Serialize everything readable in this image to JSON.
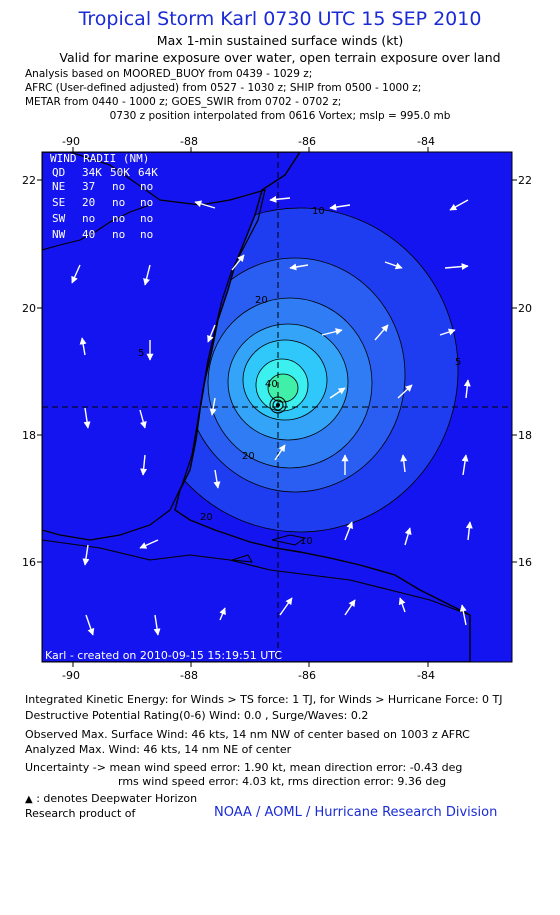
{
  "header": {
    "title": "Tropical Storm Karl 0730 UTC 15 SEP 2010",
    "subtitle1": "Max 1-min sustained surface winds (kt)",
    "subtitle2": "Valid for marine exposure over water, open terrain exposure over land",
    "analysis_lines": [
      "Analysis based on MOORED_BUOY from 0439 - 1029 z;",
      "AFRC (User-defined adjusted) from 0527 - 1030 z; SHIP from 0500 - 1000 z;",
      "METAR from 0440 - 1000 z; GOES_SWIR from 0702 - 0702 z;"
    ],
    "position_line": "0730 z position interpolated from 0616 Vortex; mslp = 995.0 mb"
  },
  "map": {
    "lon_ticks": [
      "-90",
      "-88",
      "-86",
      "-84"
    ],
    "lat_ticks": [
      "22",
      "20",
      "18",
      "16"
    ],
    "contour_labels": [
      "10",
      "20",
      "5",
      "20",
      "40",
      "10",
      "20",
      "5"
    ],
    "credit": "Karl - created on 2010-09-15 15:19:51 UTC",
    "colors": {
      "ocean": "#1414f0",
      "land_edge": "#000000",
      "contour_fill_low": "#2a5af0",
      "contour_fill_mid": "#3aa0f8",
      "contour_fill_high": "#40ffe0"
    },
    "center": {
      "lon": -86.6,
      "lat": 18.4
    }
  },
  "wind_radii": {
    "title": "WIND RADII (NM)",
    "header": [
      "QD",
      "34K",
      "50K",
      "64K"
    ],
    "rows": [
      [
        "NE",
        "37",
        "no",
        "no"
      ],
      [
        "SE",
        "20",
        "no",
        "no"
      ],
      [
        "SW",
        "no",
        "no",
        "no"
      ],
      [
        "NW",
        "40",
        "no",
        "no"
      ]
    ]
  },
  "footer": {
    "ike": "Integrated Kinetic Energy: for Winds > TS force: 1 TJ, for Winds > Hurricane Force: 0 TJ",
    "dpr": "Destructive Potential Rating(0-6)  Wind: 0.0 , Surge/Waves: 0.2",
    "observed": "Observed Max. Surface Wind: 46 kts, 14 nm NW of center based on 1003 z AFRC",
    "analyzed": "Analyzed Max. Wind: 46 kts, 14 nm NE of center",
    "uncertainty1": "Uncertainty -> mean wind speed error: 1.90 kt,   mean direction error:  -0.43 deg",
    "uncertainty2": "rms wind speed error: 4.03 kt,   rms direction error: 9.36 deg",
    "deepwater": ": denotes Deepwater Horizon",
    "research": "Research product of",
    "noaa": "NOAA / AOML / Hurricane Research Division"
  }
}
